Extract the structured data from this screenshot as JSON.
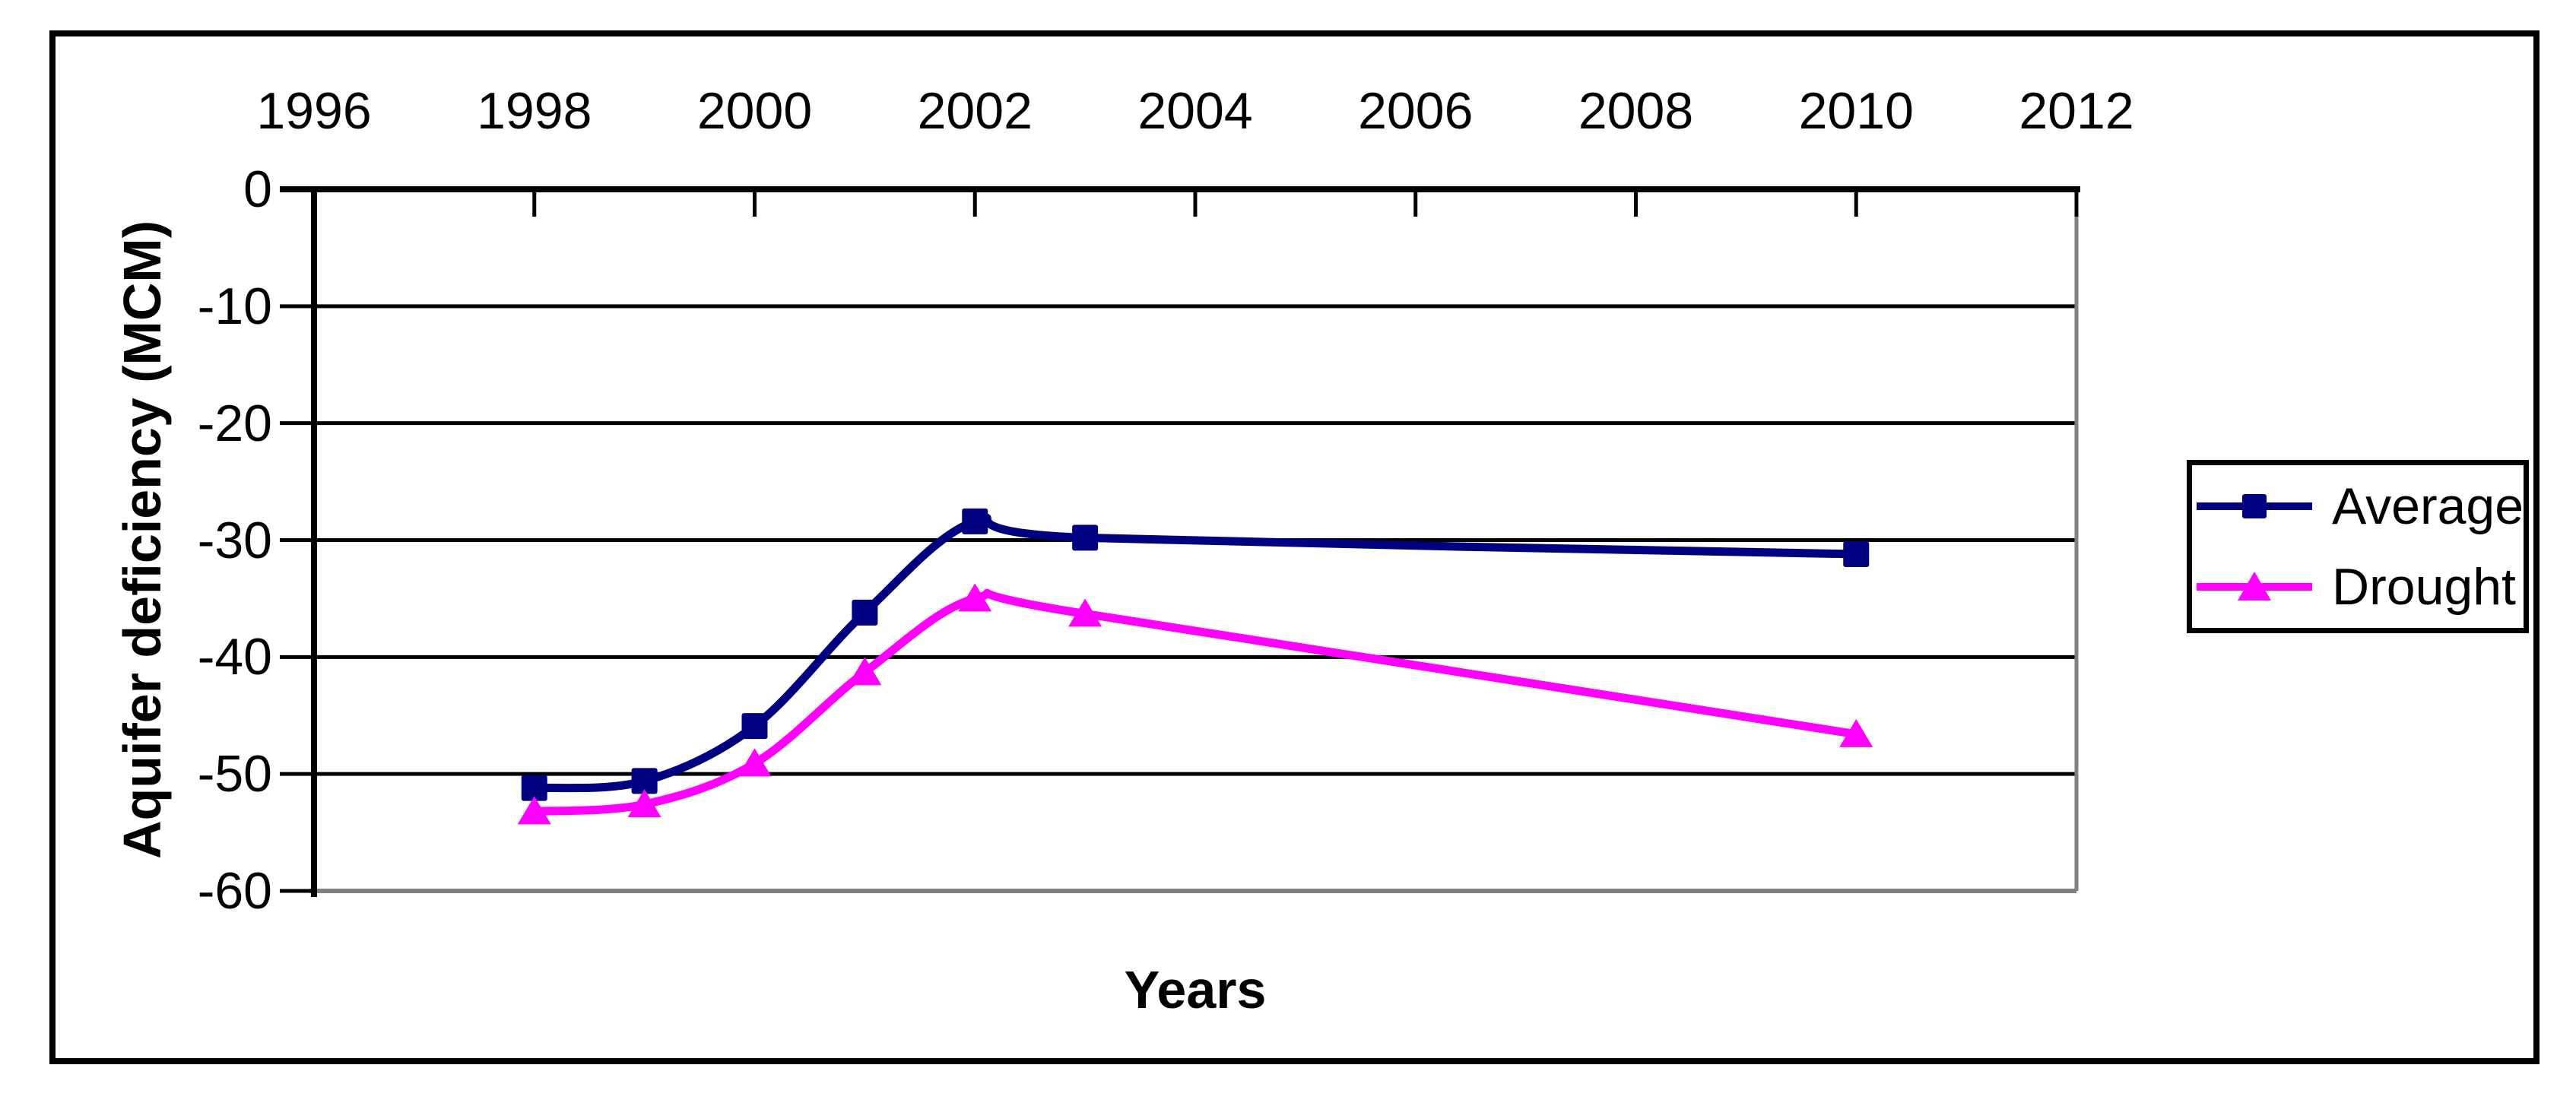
{
  "figure": {
    "background": "#FFFFFF",
    "border_color": "#000000"
  },
  "chart_data": {
    "type": "line",
    "title": "",
    "xlabel": "Years",
    "ylabel": "Aquifer deficiency (MCM)",
    "x_axis_position": "top",
    "xlim": [
      1996,
      2012
    ],
    "ylim": [
      -60,
      0
    ],
    "x_tick_values": [
      1996,
      1998,
      2000,
      2002,
      2004,
      2006,
      2008,
      2010,
      2012
    ],
    "x_tick_labels": [
      "1996",
      "1998",
      "2000",
      "2002",
      "2004",
      "2006",
      "2008",
      "2010",
      "2012"
    ],
    "y_tick_values": [
      0,
      -10,
      -20,
      -30,
      -40,
      -50,
      -60
    ],
    "y_tick_labels": [
      "0",
      "-10",
      "-20",
      "-30",
      "-40",
      "-50",
      "-60"
    ],
    "grid": true,
    "grid_color": "#000000",
    "plot_border_color": "#808080",
    "axis_color": "#000000",
    "smoothed_lines": true,
    "legend_position": "right",
    "series": [
      {
        "name": "Average",
        "color": "#000080",
        "marker": "square",
        "x": [
          1998,
          1999,
          2000,
          2001,
          2002,
          2003,
          2010
        ],
        "y": [
          -51.2,
          -50.6,
          -45.9,
          -36.2,
          -28.4,
          -29.8,
          -31.2
        ]
      },
      {
        "name": "Drought",
        "color": "#FF00FF",
        "marker": "triangle",
        "x": [
          1998,
          1999,
          2000,
          2001,
          2002,
          2003,
          2010
        ],
        "y": [
          -53.2,
          -52.6,
          -49.1,
          -41.3,
          -35.0,
          -36.3,
          -46.6
        ]
      }
    ]
  }
}
